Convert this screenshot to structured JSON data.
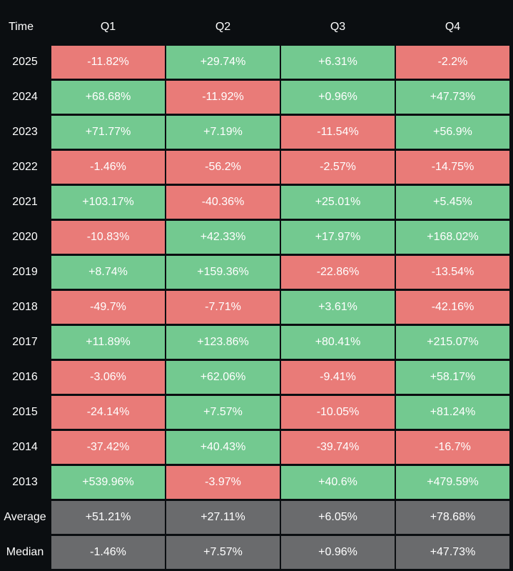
{
  "chart_data": {
    "type": "table",
    "corner_label": "Time",
    "columns": [
      "Q1",
      "Q2",
      "Q3",
      "Q4"
    ],
    "rows": [
      {
        "label": "2025",
        "cells": [
          "-11.82%",
          "+29.74%",
          "+6.31%",
          "-2.2%"
        ]
      },
      {
        "label": "2024",
        "cells": [
          "+68.68%",
          "-11.92%",
          "+0.96%",
          "+47.73%"
        ]
      },
      {
        "label": "2023",
        "cells": [
          "+71.77%",
          "+7.19%",
          "-11.54%",
          "+56.9%"
        ]
      },
      {
        "label": "2022",
        "cells": [
          "-1.46%",
          "-56.2%",
          "-2.57%",
          "-14.75%"
        ]
      },
      {
        "label": "2021",
        "cells": [
          "+103.17%",
          "-40.36%",
          "+25.01%",
          "+5.45%"
        ]
      },
      {
        "label": "2020",
        "cells": [
          "-10.83%",
          "+42.33%",
          "+17.97%",
          "+168.02%"
        ]
      },
      {
        "label": "2019",
        "cells": [
          "+8.74%",
          "+159.36%",
          "-22.86%",
          "-13.54%"
        ]
      },
      {
        "label": "2018",
        "cells": [
          "-49.7%",
          "-7.71%",
          "+3.61%",
          "-42.16%"
        ]
      },
      {
        "label": "2017",
        "cells": [
          "+11.89%",
          "+123.86%",
          "+80.41%",
          "+215.07%"
        ]
      },
      {
        "label": "2016",
        "cells": [
          "-3.06%",
          "+62.06%",
          "-9.41%",
          "+58.17%"
        ]
      },
      {
        "label": "2015",
        "cells": [
          "-24.14%",
          "+7.57%",
          "-10.05%",
          "+81.24%"
        ]
      },
      {
        "label": "2014",
        "cells": [
          "-37.42%",
          "+40.43%",
          "-39.74%",
          "-16.7%"
        ]
      },
      {
        "label": "2013",
        "cells": [
          "+539.96%",
          "-3.97%",
          "+40.6%",
          "+479.59%"
        ]
      }
    ],
    "summary_rows": [
      {
        "label": "Average",
        "cells": [
          "+51.21%",
          "+27.11%",
          "+6.05%",
          "+78.68%"
        ]
      },
      {
        "label": "Median",
        "cells": [
          "-1.46%",
          "+7.57%",
          "+0.96%",
          "+47.73%"
        ]
      }
    ]
  },
  "colors": {
    "positive": "#73c990",
    "negative": "#e97b78",
    "summary": "#6a6b6d",
    "background": "#0b0e11",
    "text": "#ffffff"
  }
}
